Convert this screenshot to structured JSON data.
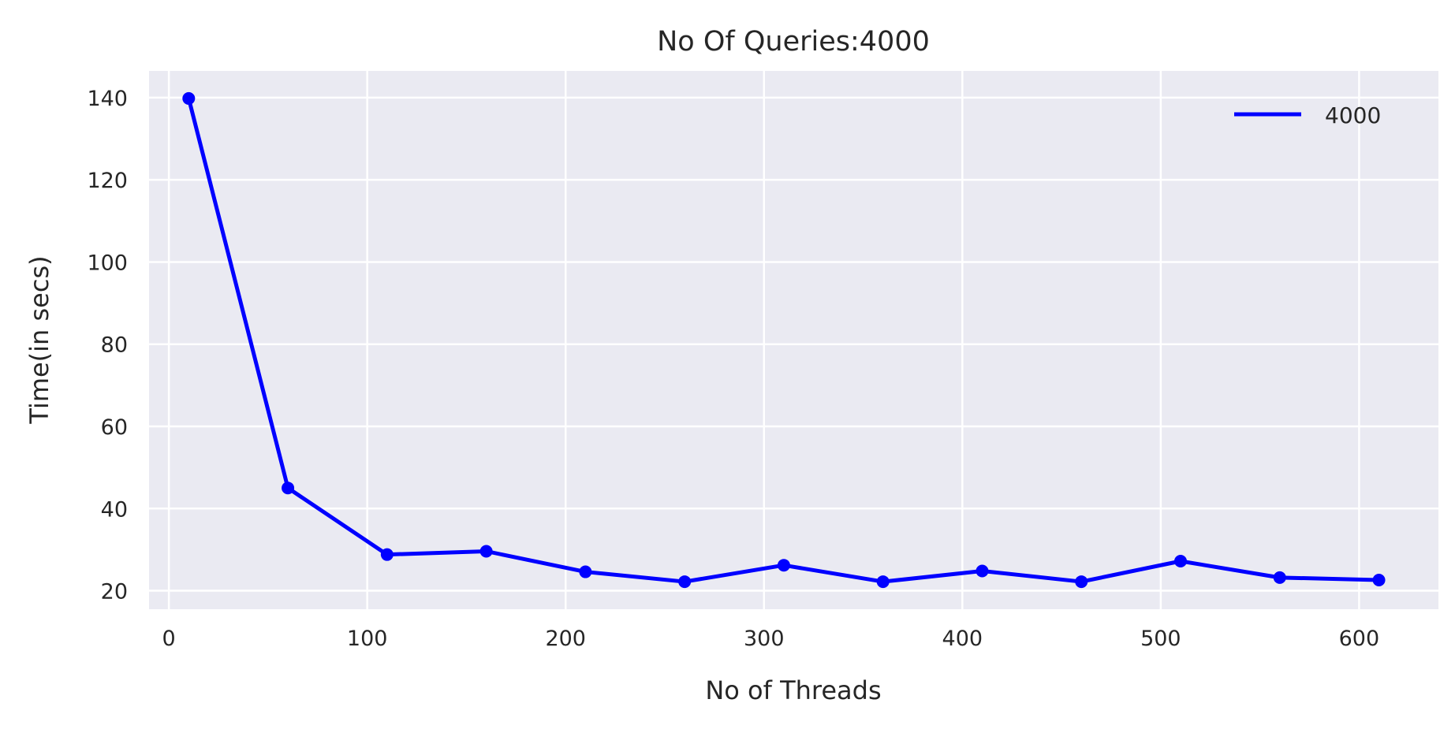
{
  "chart_data": {
    "type": "line",
    "title": "No Of Queries:4000",
    "xlabel": "No of Threads",
    "ylabel": "Time(in secs)",
    "xlim": [
      -10,
      640
    ],
    "ylim": [
      15.5,
      146.5
    ],
    "xticks": [
      0,
      100,
      200,
      300,
      400,
      500,
      600
    ],
    "yticks": [
      20,
      40,
      60,
      80,
      100,
      120,
      140
    ],
    "grid": true,
    "legend_position": "top-right",
    "series": [
      {
        "name": "4000",
        "color": "#0000ff",
        "x": [
          10,
          60,
          110,
          160,
          210,
          260,
          310,
          360,
          410,
          460,
          510,
          560,
          610
        ],
        "y": [
          139.8,
          45.0,
          28.8,
          29.6,
          24.6,
          22.2,
          26.2,
          22.2,
          24.8,
          22.2,
          27.2,
          23.2,
          22.6
        ]
      }
    ]
  }
}
